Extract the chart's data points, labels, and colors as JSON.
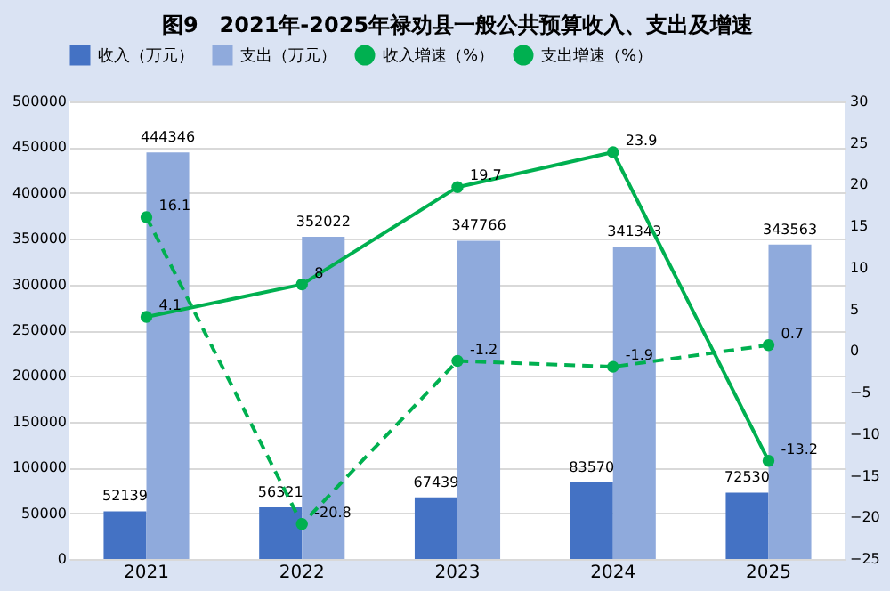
{
  "chart_data": {
    "type": "bar",
    "title": "图9　2021年-2025年禄劝县一般公共预算收入、支出及增速",
    "categories": [
      "2021",
      "2022",
      "2023",
      "2024",
      "2025"
    ],
    "series": [
      {
        "name": "收入（万元）",
        "color": "#4472c4",
        "values": [
          52139,
          56321,
          67439,
          83570,
          72530
        ]
      },
      {
        "name": "支出（万元）",
        "color": "#8faadc",
        "values": [
          444346,
          352022,
          347766,
          341343,
          343563
        ]
      },
      {
        "name": "收入增速（%）",
        "type": "line",
        "axis": "y2",
        "color": "#00b050",
        "line_style": "solid",
        "values": [
          4.1,
          8,
          19.7,
          23.9,
          -13.2
        ]
      },
      {
        "name": "支出增速（%）",
        "type": "line",
        "axis": "y2",
        "color": "#00b050",
        "line_style": "dashed",
        "values": [
          16.1,
          -20.8,
          -1.2,
          -1.9,
          0.7
        ]
      }
    ],
    "ylim": [
      0,
      500000
    ],
    "yticks": [
      0,
      50000,
      100000,
      150000,
      200000,
      250000,
      300000,
      350000,
      400000,
      450000,
      500000
    ],
    "y2lim": [
      -25,
      30
    ],
    "y2ticks": [
      -25,
      -20,
      -15,
      -10,
      -5,
      0,
      5,
      10,
      15,
      20,
      25,
      30
    ],
    "grid": "y",
    "legend": "top",
    "marker": "circle",
    "data_labels": true
  }
}
